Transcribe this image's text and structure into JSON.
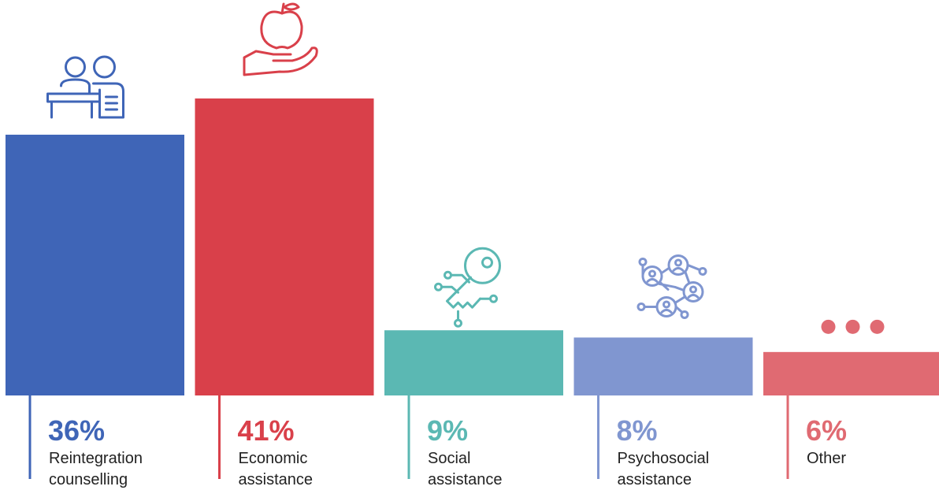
{
  "chart_data": {
    "type": "bar",
    "categories": [
      "Reintegration counselling",
      "Economic assistance",
      "Social assistance",
      "Psychosocial assistance",
      "Other"
    ],
    "values": [
      36,
      41,
      9,
      8,
      6
    ],
    "value_labels": [
      "36%",
      "41%",
      "9%",
      "8%",
      "6%"
    ],
    "label_lines": [
      [
        "Reintegration",
        "counselling"
      ],
      [
        "Economic",
        "assistance"
      ],
      [
        "Social",
        "assistance"
      ],
      [
        "Psychosocial",
        "assistance"
      ],
      [
        "Other"
      ]
    ],
    "colors": [
      "#3f65b7",
      "#d9404a",
      "#5bb8b3",
      "#8096d0",
      "#e06a72"
    ],
    "icons": [
      "counselling-people-icon",
      "apple-in-hand-icon",
      "digital-key-icon",
      "network-people-icon",
      "ellipsis-icon"
    ],
    "ylim": [
      0,
      41
    ],
    "grid": false,
    "legend": "none"
  }
}
